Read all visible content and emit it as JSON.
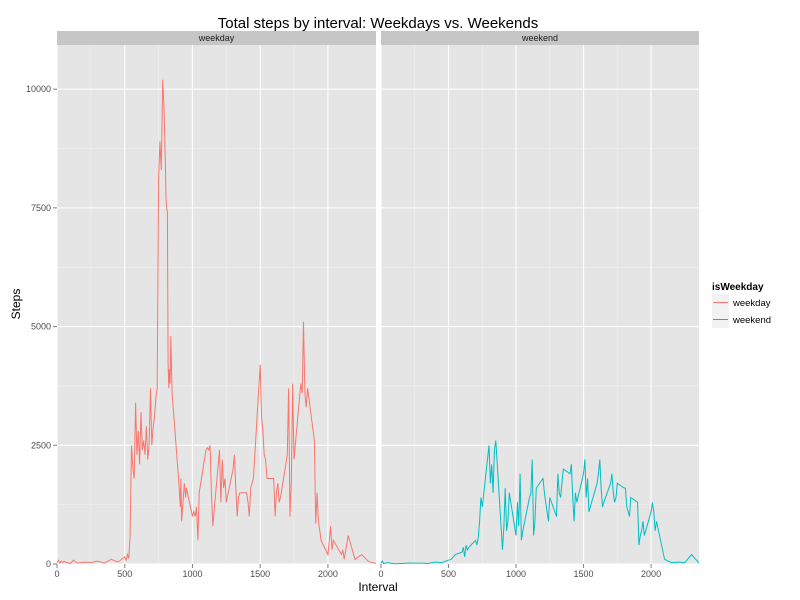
{
  "chart_data": {
    "type": "line",
    "title": "Total steps by interval: Weekdays vs. Weekends",
    "xlabel": "Interval",
    "ylabel": "Steps",
    "xlim": [
      0,
      2355
    ],
    "ylim": [
      0,
      10930
    ],
    "x_ticks": [
      0,
      500,
      1000,
      1500,
      2000
    ],
    "y_ticks": [
      0,
      2500,
      5000,
      7500,
      10000
    ],
    "grid": true,
    "legend": {
      "title": "isWeekday",
      "placement": "right",
      "entries": [
        "weekday",
        "weekend"
      ]
    },
    "panels": [
      {
        "strip": "weekday",
        "series_name": "weekday",
        "color": "#F8766D",
        "x": [
          0,
          10,
          20,
          30,
          40,
          50,
          100,
          120,
          150,
          200,
          250,
          300,
          350,
          400,
          450,
          500,
          510,
          520,
          530,
          540,
          550,
          560,
          570,
          580,
          590,
          600,
          610,
          620,
          630,
          640,
          650,
          660,
          670,
          680,
          690,
          700,
          710,
          720,
          730,
          740,
          750,
          760,
          770,
          780,
          790,
          800,
          805,
          810,
          815,
          820,
          825,
          830,
          835,
          840,
          850,
          900,
          910,
          915,
          920,
          930,
          940,
          950,
          955,
          1000,
          1010,
          1020,
          1030,
          1040,
          1050,
          1100,
          1110,
          1120,
          1130,
          1140,
          1150,
          1200,
          1210,
          1220,
          1230,
          1240,
          1250,
          1300,
          1310,
          1320,
          1330,
          1340,
          1350,
          1400,
          1410,
          1420,
          1430,
          1440,
          1450,
          1500,
          1510,
          1520,
          1530,
          1540,
          1550,
          1600,
          1610,
          1620,
          1630,
          1640,
          1650,
          1700,
          1710,
          1720,
          1730,
          1740,
          1750,
          1800,
          1810,
          1820,
          1830,
          1840,
          1850,
          1900,
          1910,
          1920,
          1930,
          1940,
          1950,
          2000,
          2010,
          2020,
          2030,
          2040,
          2100,
          2110,
          2120,
          2150,
          2200,
          2250,
          2300,
          2355
        ],
        "y": [
          30,
          80,
          20,
          60,
          30,
          50,
          10,
          80,
          20,
          40,
          30,
          60,
          20,
          100,
          40,
          150,
          80,
          200,
          120,
          600,
          2500,
          2000,
          1800,
          3400,
          2300,
          2800,
          2100,
          3200,
          2400,
          2600,
          2300,
          2900,
          2200,
          2500,
          3700,
          2500,
          2900,
          3100,
          3500,
          3700,
          8100,
          8900,
          8300,
          10200,
          9600,
          8400,
          7700,
          7500,
          7400,
          4200,
          3700,
          4100,
          3800,
          4800,
          3600,
          1700,
          1200,
          1800,
          900,
          1300,
          1700,
          1400,
          1600,
          1000,
          1100,
          1000,
          1200,
          500,
          1500,
          2400,
          2450,
          2400,
          2500,
          1500,
          800,
          2400,
          1300,
          2200,
          1600,
          1800,
          1300,
          2000,
          2300,
          1600,
          1000,
          1400,
          1500,
          1500,
          1300,
          1000,
          1600,
          1700,
          1800,
          4200,
          3100,
          2800,
          2300,
          2200,
          1800,
          1800,
          1000,
          1500,
          1700,
          1300,
          1400,
          2300,
          3700,
          1000,
          1700,
          3800,
          2200,
          3800,
          3600,
          5100,
          3600,
          3300,
          3700,
          2600,
          850,
          1500,
          900,
          700,
          500,
          200,
          500,
          800,
          300,
          500,
          200,
          300,
          100,
          600,
          100,
          200,
          50,
          10
        ],
        "x_ticks": [
          0,
          500,
          1000,
          1500,
          2000
        ]
      },
      {
        "strip": "weekend",
        "series_name": "weekend",
        "color": "#00BFC4",
        "x": [
          0,
          10,
          20,
          50,
          100,
          150,
          200,
          300,
          350,
          400,
          450,
          500,
          520,
          550,
          600,
          610,
          620,
          630,
          640,
          650,
          700,
          710,
          720,
          730,
          740,
          750,
          800,
          810,
          820,
          830,
          840,
          850,
          900,
          910,
          920,
          930,
          940,
          950,
          1000,
          1010,
          1020,
          1030,
          1040,
          1050,
          1100,
          1110,
          1120,
          1130,
          1140,
          1150,
          1200,
          1210,
          1220,
          1230,
          1240,
          1250,
          1300,
          1310,
          1320,
          1330,
          1340,
          1350,
          1400,
          1410,
          1420,
          1430,
          1440,
          1450,
          1500,
          1510,
          1520,
          1530,
          1540,
          1550,
          1600,
          1610,
          1620,
          1630,
          1640,
          1650,
          1700,
          1710,
          1720,
          1730,
          1740,
          1750,
          1800,
          1810,
          1820,
          1830,
          1840,
          1850,
          1900,
          1910,
          1920,
          1930,
          1940,
          1950,
          2000,
          2010,
          2020,
          2030,
          2040,
          2100,
          2150,
          2200,
          2250,
          2300,
          2355
        ],
        "y": [
          20,
          60,
          10,
          30,
          5,
          10,
          20,
          20,
          10,
          40,
          30,
          80,
          100,
          200,
          250,
          350,
          150,
          400,
          300,
          350,
          500,
          400,
          550,
          900,
          1400,
          1200,
          2500,
          1700,
          2100,
          1500,
          2400,
          2600,
          300,
          800,
          1600,
          700,
          900,
          1500,
          600,
          1300,
          800,
          1900,
          500,
          700,
          1400,
          1500,
          2200,
          600,
          900,
          1600,
          1800,
          1500,
          1300,
          1100,
          900,
          1400,
          1000,
          1900,
          1500,
          1400,
          1700,
          2000,
          1900,
          2100,
          1400,
          900,
          1500,
          1300,
          1900,
          2200,
          1400,
          1800,
          1100,
          1200,
          1700,
          1900,
          2200,
          1600,
          1200,
          1300,
          1700,
          1900,
          1500,
          1300,
          1400,
          1700,
          1600,
          1600,
          1200,
          1100,
          1000,
          1400,
          1300,
          400,
          600,
          700,
          900,
          600,
          1100,
          1300,
          1100,
          700,
          900,
          100,
          30,
          40,
          30,
          200,
          20
        ],
        "x_ticks": [
          0,
          500,
          1000,
          1500,
          2000
        ]
      }
    ]
  }
}
